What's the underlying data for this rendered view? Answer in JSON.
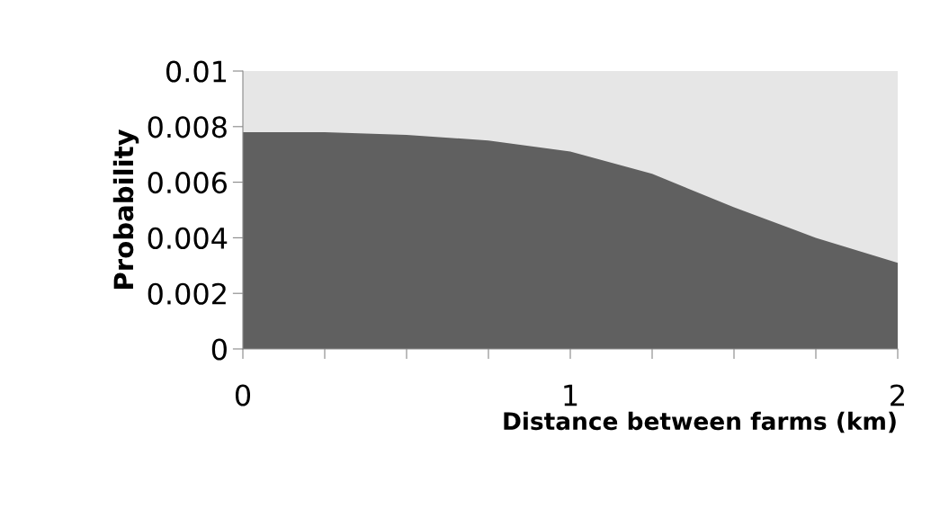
{
  "chart_data": {
    "type": "area",
    "xlabel": "Distance between farms (km)",
    "ylabel": "Probability",
    "x": [
      0,
      0.25,
      0.5,
      0.75,
      1,
      1.25,
      1.5,
      1.75,
      2
    ],
    "series": [
      {
        "color": "#606060",
        "values": [
          0.0078,
          0.0078,
          0.0077,
          0.0075,
          0.0071,
          0.0063,
          0.0051,
          0.004,
          0.0031
        ]
      }
    ],
    "xlim": [
      0,
      2
    ],
    "ylim": [
      0,
      0.01
    ],
    "xticks": [
      0,
      {
        "value": 0.25,
        "label": null
      },
      {
        "value": 0.5,
        "label": null
      },
      {
        "value": 0.75,
        "label": null
      },
      1,
      {
        "value": 1.25,
        "label": null
      },
      {
        "value": 1.5,
        "label": null
      },
      {
        "value": 1.75,
        "label": null
      },
      2
    ],
    "yticks": [
      0,
      0.002,
      0.004,
      0.006,
      0.008,
      0.01
    ],
    "grid": false,
    "legend": false
  }
}
